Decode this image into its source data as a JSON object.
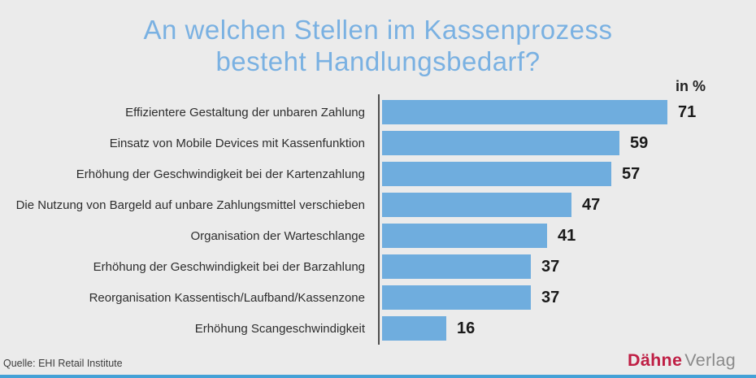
{
  "title": {
    "line1": "An welchen Stellen im Kassenprozess",
    "line2": "besteht Handlungsbedarf?"
  },
  "unit_label": "in %",
  "chart_data": {
    "type": "bar",
    "orientation": "horizontal",
    "title": "An welchen Stellen im Kassenprozess besteht Handlungsbedarf?",
    "unit": "in %",
    "categories": [
      "Effizientere Gestaltung der unbaren Zahlung",
      "Einsatz von Mobile Devices mit Kassenfunktion",
      "Erhöhung der Geschwindigkeit bei der Kartenzahlung",
      "Die Nutzung von Bargeld auf unbare Zahlungsmittel verschieben",
      "Organisation der Warteschlange",
      "Erhöhung der Geschwindigkeit bei der Barzahlung",
      "Reorganisation Kassentisch/Laufband/Kassenzone",
      "Erhöhung Scangeschwindigkeit"
    ],
    "values": [
      71,
      59,
      57,
      47,
      41,
      37,
      37,
      16
    ],
    "value_labels_shown": true,
    "grid": false,
    "legend": "none",
    "xlim": [
      0,
      93
    ]
  },
  "source": "Quelle: EHI Retail Institute",
  "publisher": {
    "name_bold": "Dähne",
    "name_regular": "Verlag"
  },
  "colors": {
    "background": "#ebebeb",
    "bar": "#6fadde",
    "title": "#7ab1e2",
    "axis": "#4f4f4f",
    "publisher_red": "#bf1f45",
    "publisher_gray": "#8a8a8a",
    "footer_strip": "#44a1d6"
  }
}
